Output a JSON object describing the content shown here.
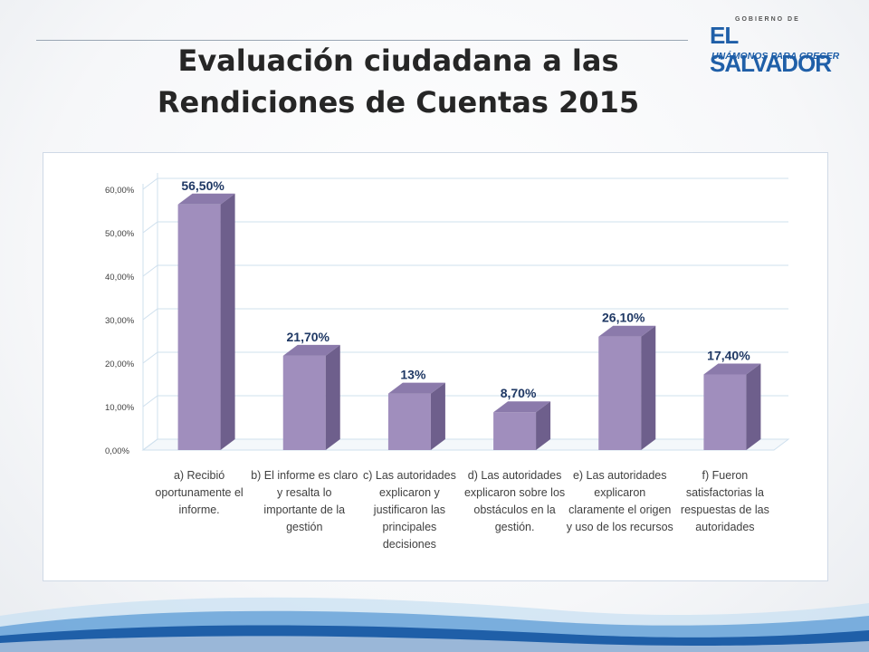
{
  "title": "Evaluación ciudadana a las Rendiciones de Cuentas 2015",
  "logo": {
    "top_text": "GOBIERNO DE",
    "main_text": "EL SALVADOR",
    "sub_text": "UNÁMONOS PARA CRECER"
  },
  "colors": {
    "bar_front": "#a08ebd",
    "bar_side": "#6e5f8c",
    "bar_top": "#8b7aab",
    "label": "#1f3864",
    "grid": "#cfe0ee",
    "brand_blue": "#1f5fa8"
  },
  "chart_data": {
    "type": "bar",
    "title": "",
    "xlabel": "",
    "ylabel": "",
    "ylim": [
      0,
      0.6
    ],
    "grid": true,
    "legend": "none",
    "y_ticks": [
      "0,00%",
      "10,00%",
      "20,00%",
      "30,00%",
      "40,00%",
      "50,00%",
      "60,00%"
    ],
    "categories": [
      "a) Recibió oportunamente el informe.",
      "b) El informe es claro y resalta lo importante de la gestión",
      "c) Las autoridades explicaron y justificaron las principales decisiones",
      "d) Las autoridades explicaron sobre los obstáculos en la gestión.",
      "e) Las autoridades explicaron claramente el origen y uso de los recursos",
      "f) Fueron satisfactorias la respuestas de las autoridades"
    ],
    "values": [
      0.565,
      0.217,
      0.13,
      0.087,
      0.261,
      0.174
    ],
    "data_labels": [
      "56,50%",
      "21,70%",
      "13%",
      "8,70%",
      "26,10%",
      "17,40%"
    ]
  }
}
